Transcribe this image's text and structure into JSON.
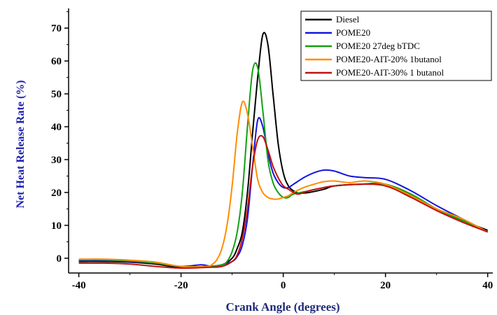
{
  "chart_data": {
    "type": "line",
    "xlabel": "Crank Angle (degrees)",
    "ylabel": "Net Heat Release Rate (%)",
    "xlim": [
      -42,
      41
    ],
    "ylim": [
      -4.5,
      76
    ],
    "xticks": [
      -40,
      -20,
      0,
      20,
      40
    ],
    "yticks": [
      0,
      10,
      20,
      30,
      40,
      50,
      60,
      70
    ],
    "xtick_labels": [
      "-40",
      "-20",
      "0",
      "20",
      "40"
    ],
    "ytick_labels": [
      "0",
      "10",
      "20",
      "30",
      "40",
      "50",
      "60",
      "70"
    ],
    "legend_position": "top-right",
    "grid": false,
    "series": [
      {
        "name": "Diesel",
        "color": "#000000",
        "x": [
          -40,
          -35,
          -30,
          -25,
          -20,
          -15,
          -12,
          -10,
          -9,
          -8,
          -7,
          -6,
          -5,
          -4,
          -3,
          -2,
          -1,
          0,
          1,
          2,
          3,
          5,
          8,
          10,
          15,
          20,
          25,
          30,
          35,
          40
        ],
        "y": [
          -1.0,
          -1.0,
          -1.2,
          -1.8,
          -2.8,
          -2.5,
          -2.0,
          0.0,
          3.0,
          8.0,
          20.0,
          38.0,
          55.0,
          68.0,
          65.0,
          50.0,
          35.0,
          26.0,
          22.0,
          20.5,
          19.8,
          20.0,
          21.0,
          22.0,
          22.5,
          22.5,
          19.0,
          15.0,
          11.5,
          8.5
        ]
      },
      {
        "name": "POME20",
        "color": "#1414e0",
        "x": [
          -40,
          -35,
          -30,
          -25,
          -20,
          -16,
          -14,
          -12,
          -10,
          -9,
          -8,
          -7,
          -6,
          -5,
          -4,
          -3,
          -2,
          -1,
          0,
          1,
          2,
          4,
          6,
          8,
          10,
          13,
          16,
          20,
          25,
          30,
          35,
          40
        ],
        "y": [
          -0.8,
          -0.8,
          -1.0,
          -1.5,
          -2.5,
          -2.0,
          -2.5,
          -2.0,
          -1.0,
          0.5,
          4.0,
          12.0,
          28.0,
          42.0,
          40.0,
          32.0,
          26.0,
          23.0,
          21.5,
          21.5,
          22.5,
          24.5,
          26.0,
          26.8,
          26.5,
          25.0,
          24.5,
          24.0,
          20.5,
          16.0,
          12.0,
          8.0
        ]
      },
      {
        "name": "POME20 27deg bTDC",
        "color": "#12a012",
        "x": [
          -40,
          -35,
          -30,
          -25,
          -20,
          -15,
          -12,
          -11,
          -10,
          -9,
          -8,
          -7,
          -6,
          -5,
          -4,
          -3,
          -2,
          -1,
          0,
          1,
          2,
          5,
          8,
          10,
          15,
          20,
          25,
          30,
          35,
          40
        ],
        "y": [
          -0.5,
          -0.5,
          -0.8,
          -1.5,
          -2.5,
          -2.5,
          -2.0,
          -1.0,
          2.0,
          8.0,
          20.0,
          40.0,
          57.0,
          58.0,
          45.0,
          30.0,
          23.0,
          20.0,
          18.5,
          18.5,
          19.5,
          20.5,
          21.5,
          22.0,
          22.5,
          22.5,
          19.5,
          15.0,
          11.5,
          8.0
        ]
      },
      {
        "name": "POME20-AIT-20% 1butanol",
        "color": "#ff8c00",
        "x": [
          -40,
          -35,
          -30,
          -25,
          -20,
          -15,
          -14,
          -13,
          -12,
          -11,
          -10,
          -9,
          -8,
          -7,
          -6,
          -5,
          -4,
          -3,
          -2,
          -1,
          0,
          1,
          2,
          4,
          6,
          8,
          10,
          13,
          16,
          20,
          25,
          30,
          35,
          40
        ],
        "y": [
          -0.3,
          -0.3,
          -0.6,
          -1.2,
          -2.5,
          -2.5,
          -2.0,
          -0.5,
          3.0,
          10.0,
          22.0,
          38.0,
          47.5,
          44.0,
          34.0,
          24.0,
          20.0,
          18.5,
          18.0,
          18.0,
          18.5,
          19.0,
          20.0,
          21.5,
          22.5,
          23.3,
          23.5,
          23.0,
          23.5,
          22.5,
          19.0,
          15.0,
          12.0,
          8.0
        ]
      },
      {
        "name": "POME20-AIT-30% 1 butanol",
        "color": "#c01010",
        "x": [
          -40,
          -35,
          -30,
          -25,
          -20,
          -15,
          -12,
          -10,
          -9,
          -8,
          -7,
          -6,
          -5,
          -4,
          -3,
          -2,
          -1,
          0,
          1,
          2,
          3,
          5,
          8,
          10,
          15,
          20,
          25,
          30,
          35,
          40
        ],
        "y": [
          -1.5,
          -1.5,
          -1.8,
          -2.5,
          -3.0,
          -2.8,
          -2.5,
          -1.0,
          1.0,
          6.0,
          15.0,
          28.0,
          36.0,
          37.0,
          33.0,
          28.0,
          24.5,
          22.0,
          21.0,
          20.0,
          19.5,
          20.5,
          21.5,
          22.0,
          22.5,
          22.0,
          18.5,
          14.5,
          11.0,
          8.0
        ]
      }
    ]
  }
}
